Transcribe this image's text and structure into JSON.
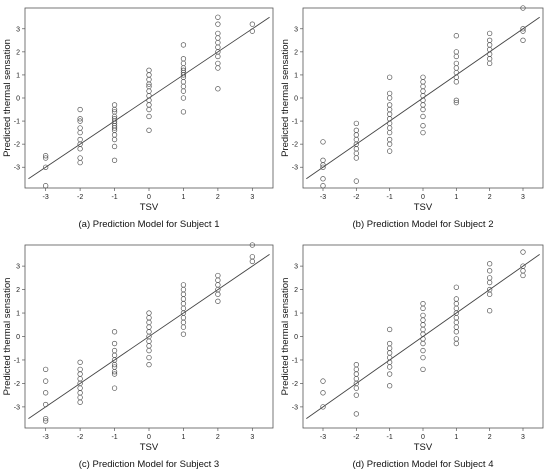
{
  "chart_data": [
    {
      "type": "scatter",
      "caption": "(a) Prediction Model for Subject 1",
      "xlabel": "TSV",
      "ylabel": "Predicted thermal sensation",
      "xticks": [
        -3,
        -2,
        -1,
        0,
        1,
        2,
        3
      ],
      "yticks": [
        -3,
        -2,
        -1,
        0,
        1,
        2,
        3
      ],
      "xlim": [
        -3.6,
        3.6
      ],
      "ylim": [
        -3.9,
        3.9
      ],
      "fit_line": {
        "from": [
          -3.5,
          -3.5
        ],
        "to": [
          3.5,
          3.5
        ]
      },
      "points": [
        [
          -3,
          -3.8
        ],
        [
          -3,
          -3.0
        ],
        [
          -3,
          -2.6
        ],
        [
          -3,
          -2.5
        ],
        [
          -2,
          -2.8
        ],
        [
          -2,
          -2.6
        ],
        [
          -2,
          -2.2
        ],
        [
          -2,
          -2.0
        ],
        [
          -2,
          -1.8
        ],
        [
          -2,
          -1.5
        ],
        [
          -2,
          -1.3
        ],
        [
          -2,
          -1.0
        ],
        [
          -2,
          -0.9
        ],
        [
          -2,
          -0.5
        ],
        [
          -1,
          -2.7
        ],
        [
          -1,
          -2.1
        ],
        [
          -1,
          -1.8
        ],
        [
          -1,
          -1.6
        ],
        [
          -1,
          -1.4
        ],
        [
          -1,
          -1.3
        ],
        [
          -1,
          -1.2
        ],
        [
          -1,
          -1.1
        ],
        [
          -1,
          -1.0
        ],
        [
          -1,
          -0.9
        ],
        [
          -1,
          -0.8
        ],
        [
          -1,
          -0.6
        ],
        [
          -1,
          -0.5
        ],
        [
          -1,
          -0.3
        ],
        [
          0,
          -1.4
        ],
        [
          0,
          -0.8
        ],
        [
          0,
          -0.5
        ],
        [
          0,
          -0.3
        ],
        [
          0,
          -0.1
        ],
        [
          0,
          0.1
        ],
        [
          0,
          0.3
        ],
        [
          0,
          0.5
        ],
        [
          0,
          0.6
        ],
        [
          0,
          0.8
        ],
        [
          0,
          1.0
        ],
        [
          0,
          1.2
        ],
        [
          1,
          -0.6
        ],
        [
          1,
          0.0
        ],
        [
          1,
          0.3
        ],
        [
          1,
          0.5
        ],
        [
          1,
          0.7
        ],
        [
          1,
          0.9
        ],
        [
          1,
          1.0
        ],
        [
          1,
          1.1
        ],
        [
          1,
          1.2
        ],
        [
          1,
          1.3
        ],
        [
          1,
          1.5
        ],
        [
          1,
          1.7
        ],
        [
          1,
          2.3
        ],
        [
          2,
          0.4
        ],
        [
          2,
          1.3
        ],
        [
          2,
          1.5
        ],
        [
          2,
          1.8
        ],
        [
          2,
          2.0
        ],
        [
          2,
          2.2
        ],
        [
          2,
          2.4
        ],
        [
          2,
          2.6
        ],
        [
          2,
          2.8
        ],
        [
          2,
          3.2
        ],
        [
          2,
          3.5
        ],
        [
          3,
          2.9
        ],
        [
          3,
          3.2
        ]
      ]
    },
    {
      "type": "scatter",
      "caption": "(b) Prediction Model for Subject 2",
      "xlabel": "TSV",
      "ylabel": "Predicted thermal sensation",
      "xticks": [
        -3,
        -2,
        -1,
        0,
        1,
        2,
        3
      ],
      "yticks": [
        -3,
        -2,
        -1,
        0,
        1,
        2,
        3
      ],
      "xlim": [
        -3.6,
        3.6
      ],
      "ylim": [
        -3.9,
        3.9
      ],
      "fit_line": {
        "from": [
          -3.5,
          -3.5
        ],
        "to": [
          3.5,
          3.5
        ]
      },
      "points": [
        [
          -3,
          -3.8
        ],
        [
          -3,
          -3.5
        ],
        [
          -3,
          -3.0
        ],
        [
          -3,
          -2.9
        ],
        [
          -3,
          -2.7
        ],
        [
          -3,
          -1.9
        ],
        [
          -2,
          -3.6
        ],
        [
          -2,
          -2.6
        ],
        [
          -2,
          -2.4
        ],
        [
          -2,
          -2.2
        ],
        [
          -2,
          -2.0
        ],
        [
          -2,
          -1.8
        ],
        [
          -2,
          -1.6
        ],
        [
          -2,
          -1.4
        ],
        [
          -2,
          -1.1
        ],
        [
          -1,
          -2.3
        ],
        [
          -1,
          -2.0
        ],
        [
          -1,
          -1.8
        ],
        [
          -1,
          -1.5
        ],
        [
          -1,
          -1.3
        ],
        [
          -1,
          -1.1
        ],
        [
          -1,
          -0.9
        ],
        [
          -1,
          -0.7
        ],
        [
          -1,
          -0.5
        ],
        [
          -1,
          -0.3
        ],
        [
          -1,
          0.0
        ],
        [
          -1,
          0.2
        ],
        [
          -1,
          0.9
        ],
        [
          0,
          -1.5
        ],
        [
          0,
          -1.2
        ],
        [
          0,
          -0.8
        ],
        [
          0,
          -0.5
        ],
        [
          0,
          -0.3
        ],
        [
          0,
          -0.1
        ],
        [
          0,
          0.1
        ],
        [
          0,
          0.3
        ],
        [
          0,
          0.5
        ],
        [
          0,
          0.7
        ],
        [
          0,
          0.9
        ],
        [
          1,
          -0.2
        ],
        [
          1,
          -0.1
        ],
        [
          1,
          0.7
        ],
        [
          1,
          0.9
        ],
        [
          1,
          1.1
        ],
        [
          1,
          1.3
        ],
        [
          1,
          1.5
        ],
        [
          1,
          1.8
        ],
        [
          1,
          2.0
        ],
        [
          1,
          2.7
        ],
        [
          2,
          1.5
        ],
        [
          2,
          1.7
        ],
        [
          2,
          1.9
        ],
        [
          2,
          2.1
        ],
        [
          2,
          2.3
        ],
        [
          2,
          2.5
        ],
        [
          2,
          2.8
        ],
        [
          3,
          2.5
        ],
        [
          3,
          2.9
        ],
        [
          3,
          3.0
        ],
        [
          3,
          3.9
        ]
      ]
    },
    {
      "type": "scatter",
      "caption": "(c) Prediction Model for Subject 3",
      "xlabel": "TSV",
      "ylabel": "Predicted thermal sensation",
      "xticks": [
        -3,
        -2,
        -1,
        0,
        1,
        2,
        3
      ],
      "yticks": [
        -3,
        -2,
        -1,
        0,
        1,
        2,
        3
      ],
      "xlim": [
        -3.6,
        3.6
      ],
      "ylim": [
        -3.9,
        3.9
      ],
      "fit_line": {
        "from": [
          -3.5,
          -3.5
        ],
        "to": [
          3.5,
          3.5
        ]
      },
      "points": [
        [
          -3,
          -3.6
        ],
        [
          -3,
          -3.5
        ],
        [
          -3,
          -2.9
        ],
        [
          -3,
          -2.4
        ],
        [
          -3,
          -1.9
        ],
        [
          -3,
          -1.4
        ],
        [
          -2,
          -2.8
        ],
        [
          -2,
          -2.6
        ],
        [
          -2,
          -2.4
        ],
        [
          -2,
          -2.2
        ],
        [
          -2,
          -2.0
        ],
        [
          -2,
          -1.8
        ],
        [
          -2,
          -1.6
        ],
        [
          -2,
          -1.4
        ],
        [
          -2,
          -1.1
        ],
        [
          -1,
          -2.2
        ],
        [
          -1,
          -1.6
        ],
        [
          -1,
          -1.5
        ],
        [
          -1,
          -1.3
        ],
        [
          -1,
          -1.2
        ],
        [
          -1,
          -1.0
        ],
        [
          -1,
          -0.8
        ],
        [
          -1,
          -0.6
        ],
        [
          -1,
          -0.3
        ],
        [
          -1,
          0.2
        ],
        [
          0,
          -1.2
        ],
        [
          0,
          -0.9
        ],
        [
          0,
          -0.6
        ],
        [
          0,
          -0.4
        ],
        [
          0,
          -0.2
        ],
        [
          0,
          0.0
        ],
        [
          0,
          0.2
        ],
        [
          0,
          0.4
        ],
        [
          0,
          0.6
        ],
        [
          0,
          0.8
        ],
        [
          0,
          1.0
        ],
        [
          1,
          0.1
        ],
        [
          1,
          0.4
        ],
        [
          1,
          0.6
        ],
        [
          1,
          0.8
        ],
        [
          1,
          1.0
        ],
        [
          1,
          1.2
        ],
        [
          1,
          1.4
        ],
        [
          1,
          1.6
        ],
        [
          1,
          1.8
        ],
        [
          1,
          2.0
        ],
        [
          1,
          2.2
        ],
        [
          2,
          1.5
        ],
        [
          2,
          1.8
        ],
        [
          2,
          2.0
        ],
        [
          2,
          2.2
        ],
        [
          2,
          2.4
        ],
        [
          2,
          2.6
        ],
        [
          3,
          3.2
        ],
        [
          3,
          3.4
        ],
        [
          3,
          3.9
        ]
      ]
    },
    {
      "type": "scatter",
      "caption": "(d) Prediction Model for Subject 4",
      "xlabel": "TSV",
      "ylabel": "Predicted thermal sensation",
      "xticks": [
        -3,
        -2,
        -1,
        0,
        1,
        2,
        3
      ],
      "yticks": [
        -3,
        -2,
        -1,
        0,
        1,
        2,
        3
      ],
      "xlim": [
        -3.6,
        3.6
      ],
      "ylim": [
        -3.9,
        3.9
      ],
      "fit_line": {
        "from": [
          -3.5,
          -3.5
        ],
        "to": [
          3.5,
          3.5
        ]
      },
      "points": [
        [
          -3,
          -3.0
        ],
        [
          -3,
          -2.4
        ],
        [
          -3,
          -1.9
        ],
        [
          -2,
          -3.3
        ],
        [
          -2,
          -2.5
        ],
        [
          -2,
          -2.2
        ],
        [
          -2,
          -2.0
        ],
        [
          -2,
          -1.8
        ],
        [
          -2,
          -1.6
        ],
        [
          -2,
          -1.4
        ],
        [
          -2,
          -1.2
        ],
        [
          -1,
          -2.1
        ],
        [
          -1,
          -1.6
        ],
        [
          -1,
          -1.3
        ],
        [
          -1,
          -1.1
        ],
        [
          -1,
          -0.9
        ],
        [
          -1,
          -0.7
        ],
        [
          -1,
          -0.5
        ],
        [
          -1,
          -0.3
        ],
        [
          -1,
          0.3
        ],
        [
          0,
          -1.4
        ],
        [
          0,
          -0.9
        ],
        [
          0,
          -0.6
        ],
        [
          0,
          -0.3
        ],
        [
          0,
          -0.1
        ],
        [
          0,
          0.1
        ],
        [
          0,
          0.3
        ],
        [
          0,
          0.5
        ],
        [
          0,
          0.7
        ],
        [
          0,
          0.9
        ],
        [
          0,
          1.2
        ],
        [
          0,
          1.4
        ],
        [
          1,
          -0.3
        ],
        [
          1,
          -0.1
        ],
        [
          1,
          0.2
        ],
        [
          1,
          0.4
        ],
        [
          1,
          0.6
        ],
        [
          1,
          0.8
        ],
        [
          1,
          1.0
        ],
        [
          1,
          1.2
        ],
        [
          1,
          1.4
        ],
        [
          1,
          1.6
        ],
        [
          1,
          2.1
        ],
        [
          2,
          1.1
        ],
        [
          2,
          1.8
        ],
        [
          2,
          2.0
        ],
        [
          2,
          2.3
        ],
        [
          2,
          2.5
        ],
        [
          2,
          2.8
        ],
        [
          2,
          3.1
        ],
        [
          3,
          2.6
        ],
        [
          3,
          2.8
        ],
        [
          3,
          3.0
        ],
        [
          3,
          3.6
        ]
      ]
    }
  ]
}
